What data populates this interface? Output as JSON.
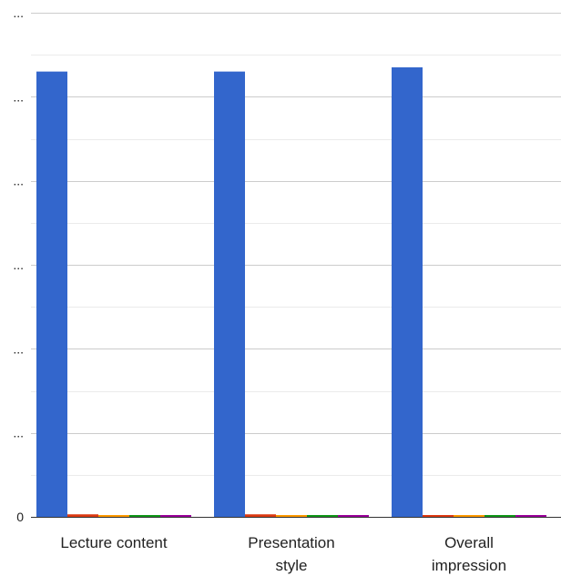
{
  "chart_data": {
    "type": "bar",
    "title": "",
    "xlabel": "",
    "ylabel": "",
    "grid": true,
    "ylim": [
      0,
      6
    ],
    "y_tick_values": [
      0,
      1,
      2,
      3,
      4,
      5,
      6
    ],
    "y_tick_labels": [
      "0",
      "...",
      "...",
      "...",
      "...",
      "...",
      "..."
    ],
    "categories": [
      "Lecture content",
      "Presentation style",
      "Overall impression"
    ],
    "series": [
      {
        "values": [
          5.3,
          5.3,
          5.35
        ],
        "color": "#3366cc"
      },
      {
        "values": [
          0.03,
          0.03,
          0.0
        ],
        "color": "#dc3912"
      },
      {
        "values": [
          0.0,
          0.0,
          0.0
        ],
        "color": "#ff9900"
      },
      {
        "values": [
          0.0,
          0.0,
          0.0
        ],
        "color": "#109618"
      },
      {
        "values": [
          0.0,
          0.0,
          0.0
        ],
        "color": "#990099"
      }
    ],
    "colors": {
      "gridline": "#cccccc",
      "minor_gridline": "#ebebeb",
      "axis_text": "#222222"
    }
  }
}
